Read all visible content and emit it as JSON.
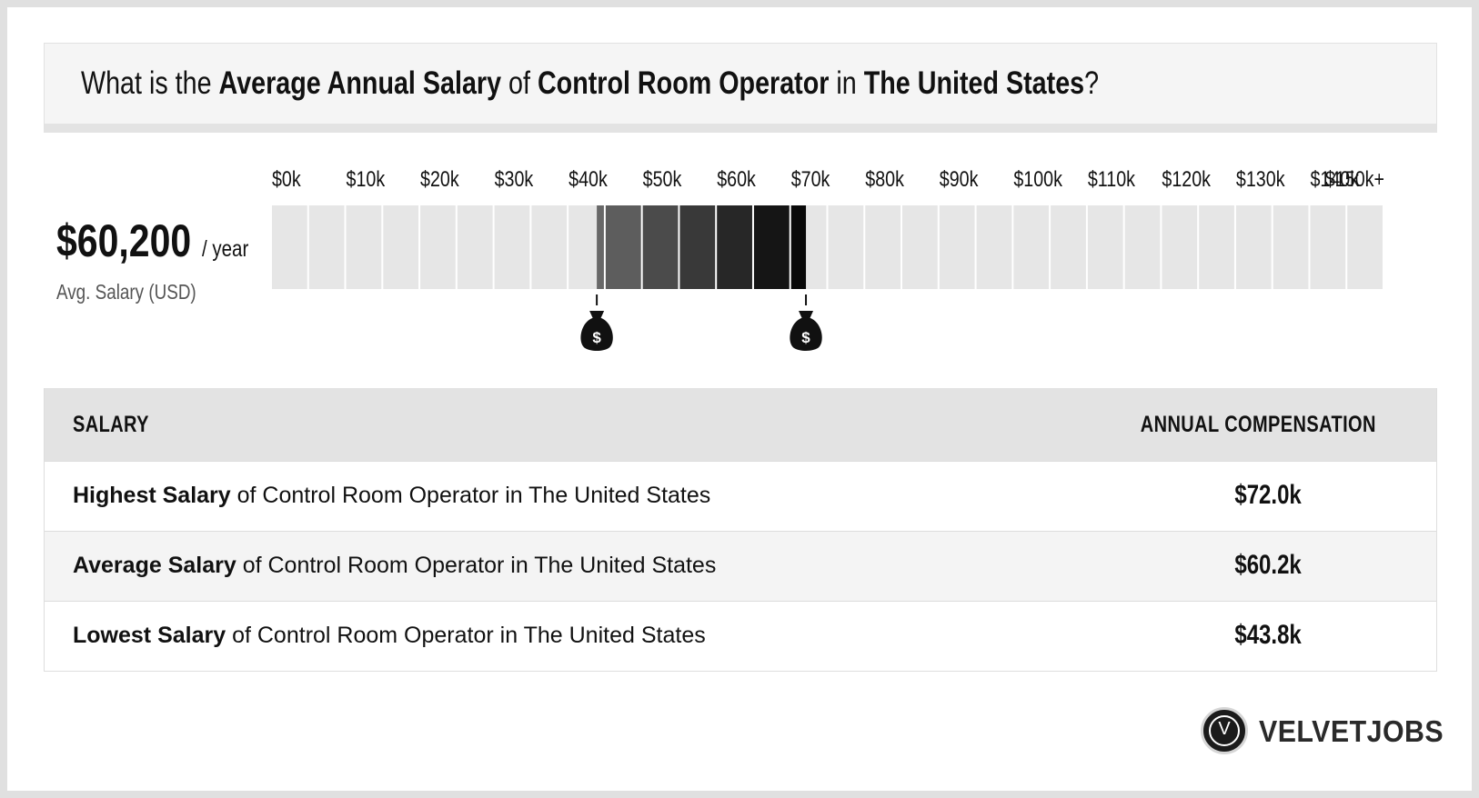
{
  "question": {
    "prefix": "What is the ",
    "metric": "Average Annual Salary",
    "of": " of ",
    "job": "Control Room Operator",
    "in": " in ",
    "location": "The United States",
    "suffix": "?"
  },
  "average": {
    "value": "$60,200",
    "unit": "/ year",
    "caption": "Avg. Salary (USD)"
  },
  "chart_data": {
    "type": "range-bar",
    "tick_labels": [
      "$0k",
      "$10k",
      "$20k",
      "$30k",
      "$40k",
      "$50k",
      "$60k",
      "$70k",
      "$80k",
      "$90k",
      "$100k",
      "$110k",
      "$120k",
      "$130k",
      "$140k",
      "$150k+"
    ],
    "x_unit": "USD",
    "xlim": [
      0,
      150000
    ],
    "cells": 30,
    "range": {
      "low": 43800,
      "high": 72000,
      "average": 60200
    },
    "marker_symbol": "$",
    "colors": {
      "empty": "#e6e6e6",
      "range_light": "#6a6a6a",
      "range_dark": "#050505"
    }
  },
  "table": {
    "headers": {
      "left": "SALARY",
      "right": "ANNUAL COMPENSATION"
    },
    "rows": [
      {
        "bold": "Highest Salary",
        "rest": " of Control Room Operator in The United States",
        "value": "$72.0k"
      },
      {
        "bold": "Average Salary",
        "rest": " of Control Room Operator in The United States",
        "value": "$60.2k"
      },
      {
        "bold": "Lowest Salary",
        "rest": " of Control Room Operator in The United States",
        "value": "$43.8k"
      }
    ]
  },
  "logo": {
    "mark": "V",
    "word": "VELVETJOBS"
  }
}
